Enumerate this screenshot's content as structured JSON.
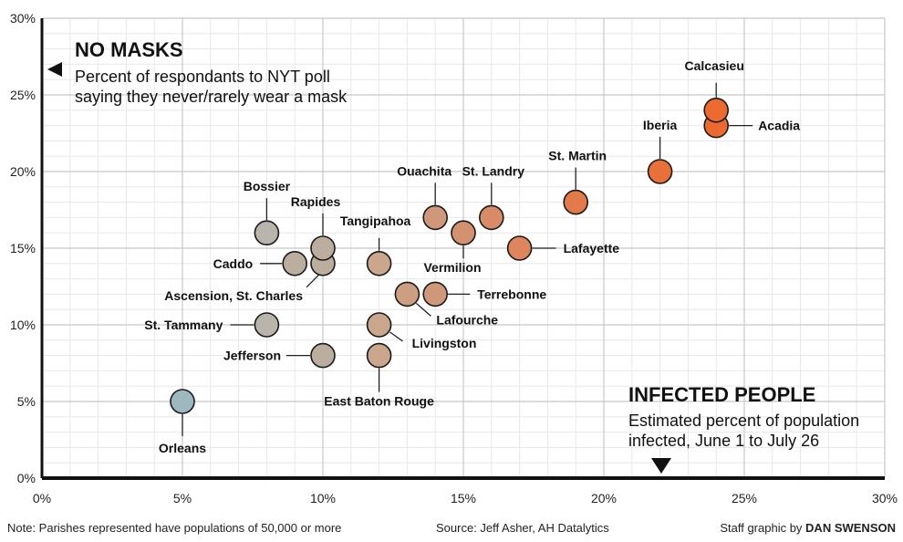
{
  "chart_data": {
    "type": "scatter",
    "xlim": [
      0,
      30
    ],
    "ylim": [
      0,
      30
    ],
    "x_ticks": [
      "0%",
      "5%",
      "10%",
      "15%",
      "20%",
      "25%",
      "30%"
    ],
    "y_ticks": [
      "0%",
      "5%",
      "10%",
      "15%",
      "20%",
      "25%",
      "30%"
    ],
    "grid": true,
    "y_heading": "NO MASKS",
    "y_desc_line1": "Percent of respondants to NYT poll",
    "y_desc_line2": "saying they never/rarely wear a mask",
    "x_heading": "INFECTED PEOPLE",
    "x_desc_line1": "Estimated percent of population",
    "x_desc_line2": "infected, June 1 to July 26",
    "points": [
      {
        "label": "Orleans",
        "x": 5,
        "y": 5,
        "color": "#9fb8c0"
      },
      {
        "label": "St. Tammany",
        "x": 8,
        "y": 10,
        "color": "#b9b5ad"
      },
      {
        "label": "Bossier",
        "x": 8,
        "y": 16,
        "color": "#b9b5ad"
      },
      {
        "label": "Caddo",
        "x": 9,
        "y": 14,
        "color": "#bcae9e"
      },
      {
        "label": "Jefferson",
        "x": 10,
        "y": 8,
        "color": "#bcae9e"
      },
      {
        "label": "Rapides",
        "x": 10,
        "y": 15,
        "color": "#bcae9e"
      },
      {
        "label": "Ascension, St. Charles",
        "x": 10,
        "y": 14,
        "color": "#bcae9e"
      },
      {
        "label": "Tangipahoa",
        "x": 12,
        "y": 14,
        "color": "#c9a68c"
      },
      {
        "label": "Livingston",
        "x": 12,
        "y": 10,
        "color": "#c9a68c"
      },
      {
        "label": "East Baton Rouge",
        "x": 12,
        "y": 8,
        "color": "#c9a68c"
      },
      {
        "label": "Lafourche",
        "x": 13,
        "y": 12,
        "color": "#cd9f80"
      },
      {
        "label": "Terrebonne",
        "x": 14,
        "y": 12,
        "color": "#d0987a"
      },
      {
        "label": "Ouachita",
        "x": 14,
        "y": 17,
        "color": "#d0987a"
      },
      {
        "label": "Vermilion",
        "x": 15,
        "y": 16,
        "color": "#d49170"
      },
      {
        "label": "St. Landry",
        "x": 16,
        "y": 17,
        "color": "#d88b67"
      },
      {
        "label": "Lafayette",
        "x": 17,
        "y": 15,
        "color": "#dc855e"
      },
      {
        "label": "St. Martin",
        "x": 19,
        "y": 18,
        "color": "#e27a4b"
      },
      {
        "label": "Iberia",
        "x": 22,
        "y": 20,
        "color": "#e8703a"
      },
      {
        "label": "Acadia",
        "x": 24,
        "y": 23,
        "color": "#ec6a30"
      },
      {
        "label": "Calcasieu",
        "x": 24,
        "y": 24,
        "color": "#ec6a30"
      }
    ]
  },
  "footer": {
    "note": "Note: Parishes represented have populations of 50,000 or more",
    "source": "Source: Jeff Asher, AH Datalytics",
    "credit_prefix": "Staff graphic by",
    "credit_name": "DAN SWENSON"
  },
  "colors": {
    "major_grid": "#c8c8c8",
    "minor_grid": "#e8e8e8",
    "axis": "#111111",
    "leader": "#222222"
  }
}
